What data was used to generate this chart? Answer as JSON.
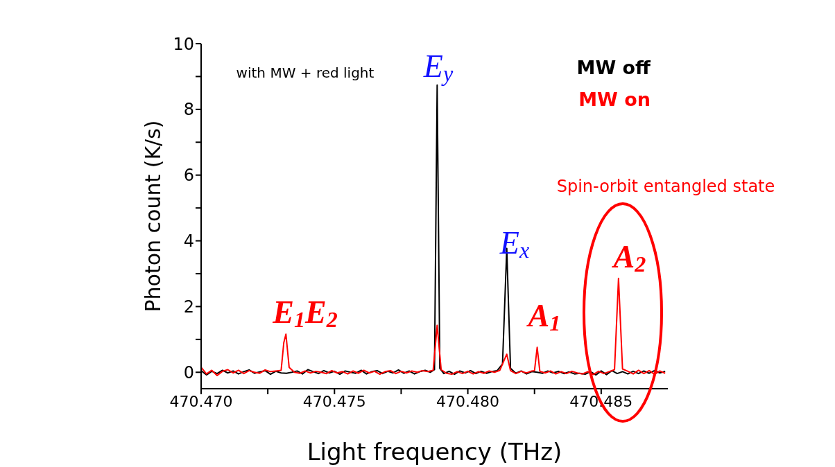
{
  "chart_data": {
    "type": "line",
    "xlabel": "Light frequency (THz)",
    "ylabel": "Photon count (K/s)",
    "xlim": [
      470.47,
      470.4875
    ],
    "ylim": [
      -0.5,
      10
    ],
    "xticks": [
      {
        "value": 470.47,
        "label": "470.470"
      },
      {
        "value": 470.4725,
        "label": null
      },
      {
        "value": 470.475,
        "label": "470.475"
      },
      {
        "value": 470.4775,
        "label": null
      },
      {
        "value": 470.48,
        "label": "470.480"
      },
      {
        "value": 470.4825,
        "label": null
      },
      {
        "value": 470.485,
        "label": "470.485"
      }
    ],
    "yticks": [
      0,
      {
        "value": 1,
        "label": null
      },
      2,
      {
        "value": 3,
        "label": null
      },
      4,
      {
        "value": 5,
        "label": null
      },
      6,
      {
        "value": 7,
        "label": null
      },
      8,
      {
        "value": 9,
        "label": null
      },
      10
    ],
    "legend": "top right",
    "marker": "none",
    "line_style": "solid",
    "series": [
      {
        "name": "MW off",
        "color": "#000000",
        "x": [
          470.47,
          470.4702,
          470.4704,
          470.4706,
          470.4708,
          470.471,
          470.4712,
          470.4714,
          470.4716,
          470.4718,
          470.472,
          470.4722,
          470.4724,
          470.4726,
          470.4728,
          470.473,
          470.4732,
          470.4734,
          470.4736,
          470.4738,
          470.474,
          470.4742,
          470.4744,
          470.4746,
          470.4748,
          470.475,
          470.4752,
          470.4754,
          470.4756,
          470.4758,
          470.476,
          470.4762,
          470.4764,
          470.4766,
          470.4768,
          470.477,
          470.4772,
          470.4774,
          470.4776,
          470.4778,
          470.478,
          470.4782,
          470.4784,
          470.4786,
          470.47875,
          470.47885,
          470.47895,
          470.4791,
          470.4793,
          470.4795,
          470.4797,
          470.4799,
          470.4801,
          470.4803,
          470.4805,
          470.4807,
          470.4809,
          470.4811,
          470.4813,
          470.48146,
          470.4816,
          470.4818,
          470.482,
          470.4822,
          470.4824,
          470.4826,
          470.4828,
          470.483,
          470.4832,
          470.4834,
          470.4836,
          470.4838,
          470.484,
          470.4842,
          470.4844,
          470.4846,
          470.4848,
          470.485,
          470.4852,
          470.4854,
          470.4856,
          470.4858,
          470.486,
          470.4862,
          470.4864,
          470.4866,
          470.4868,
          470.487,
          470.4872,
          470.4874
        ],
        "values": [
          0.05,
          -0.08,
          0.03,
          -0.04,
          0.06,
          -0.02,
          0.04,
          -0.05,
          0.02,
          0.07,
          -0.03,
          0.01,
          0.05,
          -0.06,
          0.03,
          -0.02,
          -0.03,
          0,
          0.04,
          -0.05,
          0.08,
          0.02,
          -0.04,
          0.05,
          -0.02,
          0.03,
          -0.06,
          0.04,
          0,
          -0.03,
          0.06,
          -0.05,
          0.02,
          0.05,
          -0.04,
          0.03,
          -0.02,
          0.07,
          -0.03,
          0.04,
          -0.05,
          0.02,
          0.06,
          0,
          0.08,
          8.74,
          0.12,
          -0.04,
          0.03,
          -0.06,
          0.04,
          -0.02,
          0.05,
          -0.04,
          0.03,
          -0.03,
          0.02,
          0.05,
          0.25,
          3.77,
          0.12,
          -0.03,
          0.04,
          -0.05,
          0.02,
          0,
          -0.03,
          0.04,
          -0.02,
          0.03,
          -0.04,
          0.01,
          -0.05,
          -0.03,
          -0.06,
          0.02,
          -0.08,
          0.04,
          -0.07,
          0.05,
          -0.04,
          0.02,
          -0.05,
          0.03,
          -0.04,
          0.04,
          -0.03,
          0.05,
          -0.02,
          0.03
        ]
      },
      {
        "name": "MW on",
        "color": "#ff0000",
        "x": [
          470.47,
          470.4702,
          470.4704,
          470.4706,
          470.4708,
          470.471,
          470.4712,
          470.4714,
          470.4716,
          470.4718,
          470.472,
          470.4722,
          470.4724,
          470.4726,
          470.4728,
          470.473,
          470.4731,
          470.47318,
          470.4733,
          470.4735,
          470.4737,
          470.4739,
          470.4741,
          470.4743,
          470.4745,
          470.4747,
          470.4749,
          470.4751,
          470.4753,
          470.4755,
          470.4757,
          470.4759,
          470.4761,
          470.4763,
          470.4765,
          470.4767,
          470.4769,
          470.4771,
          470.4773,
          470.4775,
          470.4777,
          470.4779,
          470.4781,
          470.4783,
          470.4785,
          470.4787,
          470.47885,
          470.479,
          470.4792,
          470.4794,
          470.4796,
          470.4798,
          470.48,
          470.4802,
          470.4804,
          470.4806,
          470.4808,
          470.481,
          470.4812,
          470.48146,
          470.4816,
          470.4818,
          470.482,
          470.4822,
          470.4824,
          470.4825,
          470.4826,
          470.4827,
          470.4829,
          470.4831,
          470.4833,
          470.4835,
          470.4837,
          470.4839,
          470.4841,
          470.4843,
          470.4845,
          470.4847,
          470.4849,
          470.4851,
          470.4853,
          470.4855,
          470.48565,
          470.4858,
          470.486,
          470.4862,
          470.4864,
          470.4866,
          470.4868,
          470.487,
          470.4872,
          470.4874
        ],
        "values": [
          0.15,
          -0.05,
          0.06,
          -0.1,
          0.03,
          0.08,
          -0.02,
          0.06,
          -0.04,
          0.05,
          0,
          -0.03,
          0.07,
          0.02,
          0.04,
          0.06,
          0.9,
          1.16,
          0.15,
          0,
          -0.03,
          0.04,
          -0.02,
          0.03,
          0,
          -0.04,
          0.05,
          -0.02,
          0.02,
          -0.05,
          0.04,
          -0.03,
          0.06,
          -0.02,
          0.03,
          -0.06,
          0.02,
          0.05,
          -0.04,
          0.03,
          -0.02,
          0.04,
          0,
          0.05,
          0.02,
          0.06,
          1.43,
          0.08,
          -0.03,
          -0.06,
          0.02,
          -0.04,
          0.03,
          -0.05,
          0.02,
          -0.03,
          0.04,
          0,
          0.06,
          0.55,
          0.05,
          -0.04,
          0.03,
          -0.02,
          0.04,
          0.05,
          0.76,
          0.03,
          -0.02,
          0.04,
          -0.05,
          0.02,
          -0.04,
          0.03,
          -0.02,
          -0.05,
          0.02,
          -0.07,
          0.03,
          -0.04,
          0.02,
          0.08,
          2.86,
          0.1,
          0.03,
          -0.05,
          0.06,
          -0.04,
          0.05,
          -0.06,
          0.04,
          -0.03
        ]
      }
    ],
    "annotations": [
      "with MW + red light",
      "E$_{y}$",
      "E$_{x}$",
      "E$_{1}$E$_{2}$",
      "A$_{1}$",
      "A$_{2}$",
      "Spin-orbit entangled state"
    ]
  }
}
